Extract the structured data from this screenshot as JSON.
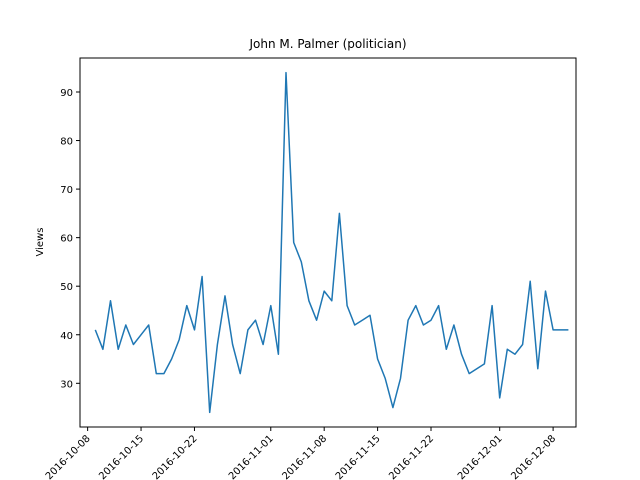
{
  "chart_data": {
    "type": "line",
    "title": "John M. Palmer (politician)",
    "xlabel": "",
    "ylabel": "Views",
    "x_ticks": [
      "2016-10-08",
      "2016-10-15",
      "2016-10-22",
      "2016-11-01",
      "2016-11-08",
      "2016-11-15",
      "2016-11-22",
      "2016-12-01",
      "2016-12-08"
    ],
    "y_ticks": [
      30,
      40,
      50,
      60,
      70,
      80,
      90
    ],
    "ylim": [
      21,
      97
    ],
    "xlim": [
      "2016-10-07",
      "2016-12-11"
    ],
    "grid": false,
    "colors": {
      "line": "#1f77b4"
    },
    "series": [
      {
        "x": [
          "2016-10-09",
          "2016-10-10",
          "2016-10-11",
          "2016-10-12",
          "2016-10-13",
          "2016-10-14",
          "2016-10-15",
          "2016-10-16",
          "2016-10-17",
          "2016-10-18",
          "2016-10-19",
          "2016-10-20",
          "2016-10-21",
          "2016-10-22",
          "2016-10-23",
          "2016-10-24",
          "2016-10-25",
          "2016-10-26",
          "2016-10-27",
          "2016-10-28",
          "2016-10-29",
          "2016-10-30",
          "2016-10-31",
          "2016-11-01",
          "2016-11-02",
          "2016-11-03",
          "2016-11-04",
          "2016-11-05",
          "2016-11-06",
          "2016-11-07",
          "2016-11-08",
          "2016-11-09",
          "2016-11-10",
          "2016-11-11",
          "2016-11-12",
          "2016-11-13",
          "2016-11-14",
          "2016-11-15",
          "2016-11-16",
          "2016-11-17",
          "2016-11-18",
          "2016-11-19",
          "2016-11-20",
          "2016-11-21",
          "2016-11-22",
          "2016-11-23",
          "2016-11-24",
          "2016-11-25",
          "2016-11-26",
          "2016-11-27",
          "2016-11-28",
          "2016-11-29",
          "2016-11-30",
          "2016-12-01",
          "2016-12-02",
          "2016-12-03",
          "2016-12-04",
          "2016-12-05",
          "2016-12-06",
          "2016-12-07",
          "2016-12-08",
          "2016-12-09",
          "2016-12-10"
        ],
        "values": [
          41,
          37,
          47,
          37,
          42,
          38,
          40,
          42,
          32,
          32,
          35,
          39,
          46,
          41,
          52,
          24,
          38,
          48,
          38,
          32,
          41,
          43,
          38,
          46,
          36,
          94,
          59,
          55,
          47,
          43,
          49,
          47,
          65,
          46,
          42,
          43,
          44,
          35,
          31,
          25,
          31,
          43,
          46,
          42,
          43,
          46,
          37,
          42,
          36,
          32,
          33,
          34,
          46,
          27,
          37,
          36,
          38,
          51,
          33,
          49,
          41,
          41,
          41
        ]
      }
    ]
  }
}
